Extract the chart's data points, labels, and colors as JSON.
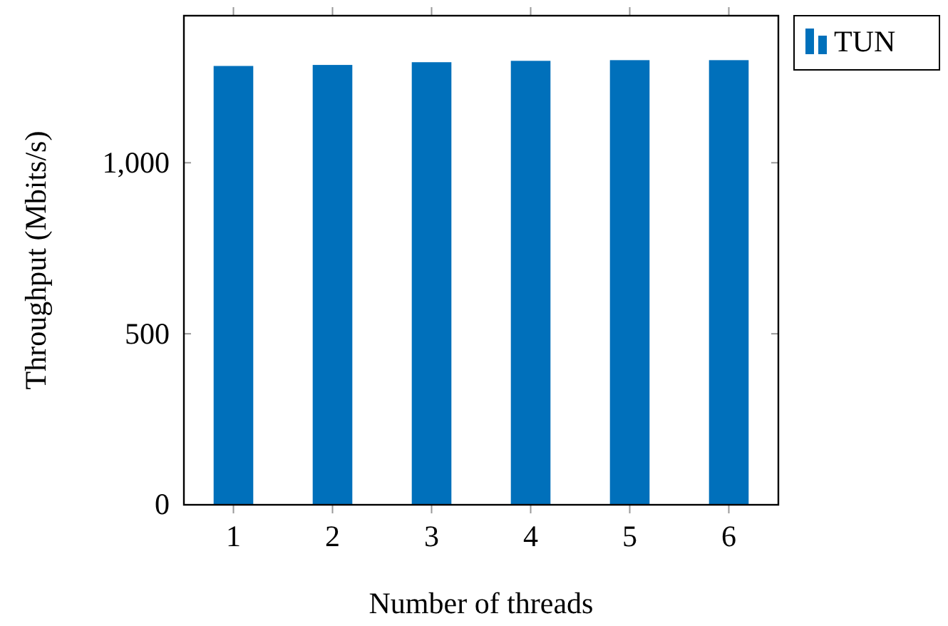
{
  "chart_data": {
    "type": "bar",
    "xlabel": "Number of threads",
    "ylabel": "Throughput (Mbits/s)",
    "categories": [
      "1",
      "2",
      "3",
      "4",
      "5",
      "6"
    ],
    "series": [
      {
        "name": "TUN",
        "color": "#0070bb",
        "values": [
          1283,
          1286,
          1294,
          1298,
          1300,
          1300
        ]
      }
    ],
    "ylim": [
      0,
      1430
    ],
    "yticks": [
      0,
      500,
      {
        "value": 1000,
        "label": "1,000"
      }
    ],
    "grid": false,
    "legend": "right"
  }
}
